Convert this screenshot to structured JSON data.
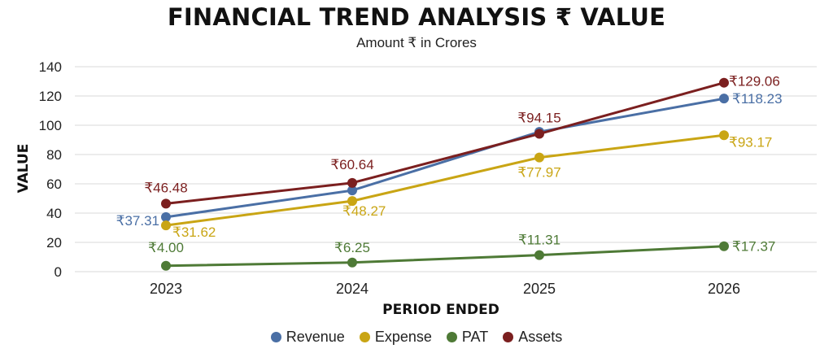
{
  "chart_data": {
    "type": "line",
    "title": "FINANCIAL TREND ANALYSIS ₹ VALUE",
    "subtitle": "Amount ₹ in Crores",
    "xlabel": "PERIOD ENDED",
    "ylabel": "VALUE",
    "categories": [
      "2023",
      "2024",
      "2025",
      "2026"
    ],
    "ylim": [
      0,
      140
    ],
    "yticks": [
      0,
      20,
      40,
      60,
      80,
      100,
      120,
      140
    ],
    "grid": true,
    "legend_position": "bottom",
    "series": [
      {
        "name": "Revenue",
        "color": "#4a6fa5",
        "values": [
          37.31,
          55.5,
          95.5,
          118.23
        ],
        "labels": [
          "₹37.31",
          "",
          "",
          "₹118.23"
        ]
      },
      {
        "name": "Expense",
        "color": "#c9a514",
        "values": [
          31.62,
          48.27,
          77.97,
          93.17
        ],
        "labels": [
          "₹31.62",
          "₹48.27",
          "₹77.97",
          "₹93.17"
        ]
      },
      {
        "name": "PAT",
        "color": "#4e7a36",
        "values": [
          4.0,
          6.25,
          11.31,
          17.37
        ],
        "labels": [
          "₹4.00",
          "₹6.25",
          "₹11.31",
          "₹17.37"
        ]
      },
      {
        "name": "Assets",
        "color": "#7b1f1f",
        "values": [
          46.48,
          60.64,
          94.15,
          129.06
        ],
        "labels": [
          "₹46.48",
          "₹60.64",
          "₹94.15",
          "₹129.06"
        ]
      }
    ]
  }
}
